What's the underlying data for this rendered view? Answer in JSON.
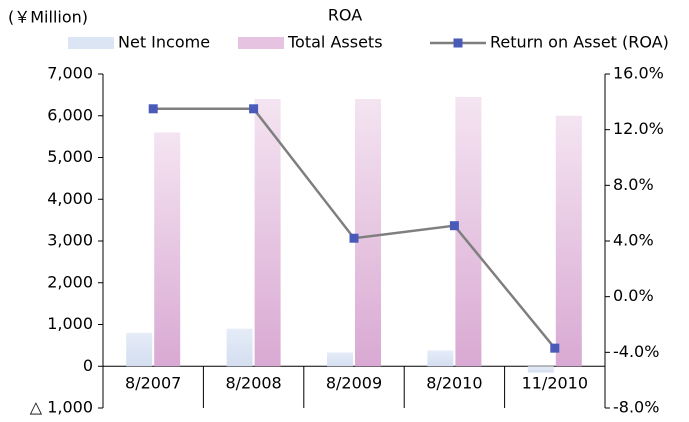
{
  "chart_data": {
    "type": "combo",
    "title": "ROA",
    "y_label": "(￥Million)",
    "categories": [
      "8/2007",
      "8/2008",
      "8/2009",
      "8/2010",
      "11/2010"
    ],
    "series": [
      {
        "name": "Net Income",
        "type": "bar",
        "color": "#dce5f4",
        "values": [
          800,
          900,
          330,
          380,
          -150
        ]
      },
      {
        "name": "Total Assets",
        "type": "bar",
        "color": "#e6c3e0",
        "values": [
          5600,
          6400,
          6400,
          6450,
          6000
        ]
      },
      {
        "name": "Return on Asset (ROA)",
        "type": "line",
        "axis": "y2",
        "color": "#7f7f7f",
        "marker_color": "#4a5ab8",
        "values": [
          13.5,
          13.5,
          4.2,
          5.1,
          -3.7
        ]
      }
    ],
    "ylim": [
      -1000,
      7000
    ],
    "yticks": [
      {
        "value": -1000,
        "label": "△ 1,000"
      },
      0,
      {
        "value": 1000,
        "label": "1,000"
      },
      {
        "value": 2000,
        "label": "2,000"
      },
      {
        "value": 3000,
        "label": "3,000"
      },
      {
        "value": 4000,
        "label": "4,000"
      },
      {
        "value": 5000,
        "label": "5,000"
      },
      {
        "value": 6000,
        "label": "6,000"
      },
      {
        "value": 7000,
        "label": "7,000"
      }
    ],
    "y2lim": [
      -8,
      16
    ],
    "y2ticks": [
      {
        "value": -8,
        "label": "-8.0%"
      },
      {
        "value": -4,
        "label": "-4.0%"
      },
      {
        "value": 0,
        "label": "0.0%"
      },
      {
        "value": 4,
        "label": "4.0%"
      },
      {
        "value": 8,
        "label": "8.0%"
      },
      {
        "value": 12,
        "label": "12.0%"
      },
      {
        "value": 16,
        "label": "16.0%"
      }
    ],
    "legend": "top",
    "grid": false
  }
}
